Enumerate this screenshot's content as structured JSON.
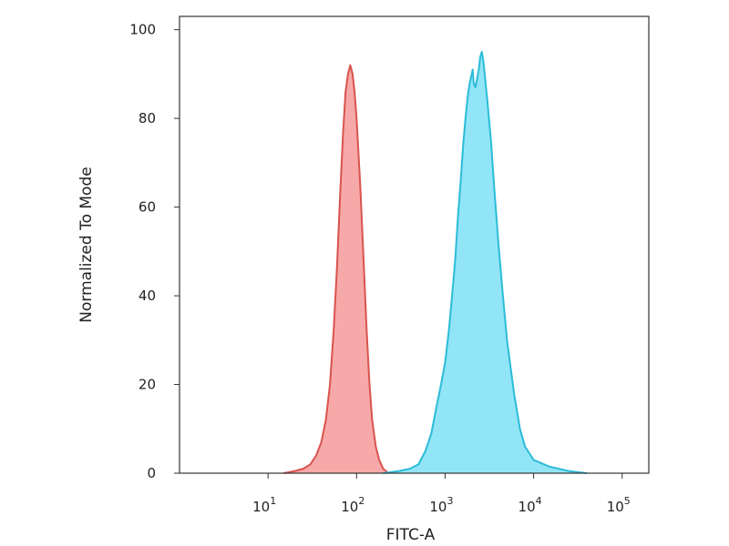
{
  "chart_data": {
    "type": "area",
    "title": "",
    "xlabel": "FITC-A",
    "ylabel": "Normalized To Mode",
    "x_scale": "log",
    "xlim": [
      1,
      200000
    ],
    "ylim": [
      0,
      103
    ],
    "grid": false,
    "x_ticks": [
      {
        "value": 10,
        "base": "10",
        "exp": "1"
      },
      {
        "value": 100,
        "base": "10",
        "exp": "2"
      },
      {
        "value": 1000,
        "base": "10",
        "exp": "3"
      },
      {
        "value": 10000,
        "base": "10",
        "exp": "4"
      },
      {
        "value": 100000,
        "base": "10",
        "exp": "5"
      }
    ],
    "y_ticks": [
      0,
      20,
      40,
      60,
      80,
      100
    ],
    "series": [
      {
        "color": "#d9534f",
        "fill": "#f59a99",
        "points": [
          [
            15,
            0
          ],
          [
            20,
            0.5
          ],
          [
            25,
            1
          ],
          [
            30,
            2
          ],
          [
            35,
            4
          ],
          [
            40,
            7
          ],
          [
            45,
            12
          ],
          [
            50,
            20
          ],
          [
            55,
            32
          ],
          [
            60,
            46
          ],
          [
            65,
            62
          ],
          [
            70,
            76
          ],
          [
            75,
            86
          ],
          [
            80,
            90
          ],
          [
            85,
            92
          ],
          [
            90,
            90
          ],
          [
            95,
            86
          ],
          [
            100,
            80
          ],
          [
            110,
            65
          ],
          [
            120,
            48
          ],
          [
            130,
            32
          ],
          [
            140,
            20
          ],
          [
            150,
            12
          ],
          [
            165,
            6
          ],
          [
            180,
            3
          ],
          [
            200,
            1
          ],
          [
            230,
            0
          ]
        ]
      },
      {
        "color": "#2bbcd8",
        "fill": "#7fe0f5",
        "points": [
          [
            200,
            0
          ],
          [
            300,
            0.5
          ],
          [
            400,
            1
          ],
          [
            500,
            2
          ],
          [
            600,
            5
          ],
          [
            700,
            9
          ],
          [
            800,
            15
          ],
          [
            900,
            20
          ],
          [
            1000,
            25
          ],
          [
            1100,
            32
          ],
          [
            1200,
            40
          ],
          [
            1300,
            48
          ],
          [
            1400,
            58
          ],
          [
            1500,
            66
          ],
          [
            1600,
            74
          ],
          [
            1700,
            80
          ],
          [
            1800,
            85
          ],
          [
            1900,
            88
          ],
          [
            2000,
            90
          ],
          [
            2050,
            91
          ],
          [
            2100,
            88
          ],
          [
            2200,
            87
          ],
          [
            2300,
            89
          ],
          [
            2400,
            91
          ],
          [
            2500,
            94
          ],
          [
            2600,
            95
          ],
          [
            2700,
            93
          ],
          [
            2800,
            90
          ],
          [
            3000,
            84
          ],
          [
            3300,
            75
          ],
          [
            3600,
            64
          ],
          [
            4000,
            52
          ],
          [
            4500,
            40
          ],
          [
            5000,
            30
          ],
          [
            6000,
            18
          ],
          [
            7000,
            10
          ],
          [
            8000,
            6
          ],
          [
            10000,
            3
          ],
          [
            15000,
            1.5
          ],
          [
            25000,
            0.5
          ],
          [
            40000,
            0
          ]
        ]
      }
    ]
  }
}
